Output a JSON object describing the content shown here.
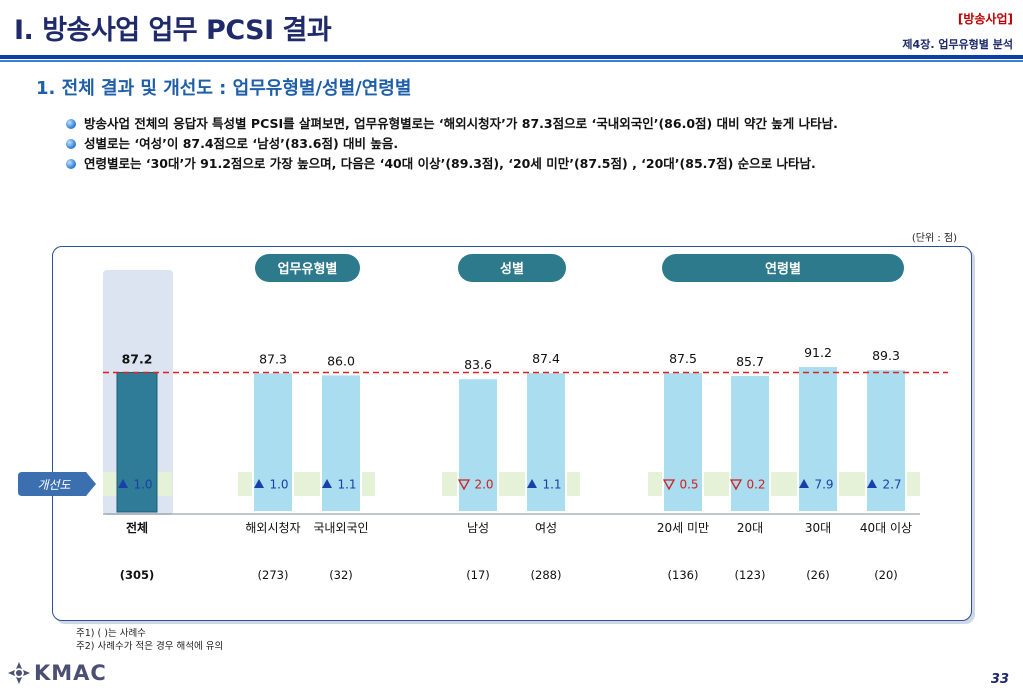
{
  "header": {
    "title": "I. 방송사업 업무 PCSI 결과",
    "tag": "[방송사업]",
    "chapter": "제4장. 업무유형별 분석"
  },
  "section": {
    "heading": "1. 전체 결과 및 개선도 : 업무유형별/성별/연령별"
  },
  "bullets": [
    "방송사업 전체의 응답자 특성별 PCSI를 살펴보면, 업무유형별로는 ‘해외시청자’가 87.3점으로 ‘국내외국인’(86.0점) 대비 약간 높게 나타남.",
    "성별로는 ‘여성’이 87.4점으로 ‘남성’(83.6점) 대비 높음.",
    "연령별로는 ‘30대’가 91.2점으로 가장 높으며, 다음은 ‘40대 이상’(89.3점), ‘20세 미만’(87.5점) , ‘20대’(85.7점) 순으로 나타남."
  ],
  "unit": "(단위 : 점)",
  "chart_data": {
    "type": "bar",
    "ylim": [
      0,
      100
    ],
    "groups": [
      "업무유형별",
      "성별",
      "연령별"
    ],
    "improvement_label": "개선도",
    "average_line": 87.2,
    "bars": [
      {
        "category": "전체",
        "group": "",
        "value": 87.2,
        "value_label": "87.2",
        "improvement": 1.0,
        "improvement_dir": "up",
        "improvement_label": "1.0",
        "n": "(305)",
        "highlight": true
      },
      {
        "category": "해외시청자",
        "group": "업무유형별",
        "value": 87.3,
        "value_label": "87.3",
        "improvement": 1.0,
        "improvement_dir": "up",
        "improvement_label": "1.0",
        "n": "(273)"
      },
      {
        "category": "국내외국인",
        "group": "업무유형별",
        "value": 86.0,
        "value_label": "86.0",
        "improvement": 1.1,
        "improvement_dir": "up",
        "improvement_label": "1.1",
        "n": "(32)"
      },
      {
        "category": "남성",
        "group": "성별",
        "value": 83.6,
        "value_label": "83.6",
        "improvement": -2.0,
        "improvement_dir": "down",
        "improvement_label": "2.0",
        "n": "(17)"
      },
      {
        "category": "여성",
        "group": "성별",
        "value": 87.4,
        "value_label": "87.4",
        "improvement": 1.1,
        "improvement_dir": "up",
        "improvement_label": "1.1",
        "n": "(288)"
      },
      {
        "category": "20세 미만",
        "group": "연령별",
        "value": 87.5,
        "value_label": "87.5",
        "improvement": -0.5,
        "improvement_dir": "down",
        "improvement_label": "0.5",
        "n": "(136)"
      },
      {
        "category": "20대",
        "group": "연령별",
        "value": 85.7,
        "value_label": "85.7",
        "improvement": -0.2,
        "improvement_dir": "down",
        "improvement_label": "0.2",
        "n": "(123)"
      },
      {
        "category": "30대",
        "group": "연령별",
        "value": 91.2,
        "value_label": "91.2",
        "improvement": 7.9,
        "improvement_dir": "up",
        "improvement_label": "7.9",
        "n": "(26)"
      },
      {
        "category": "40대 이상",
        "group": "연령별",
        "value": 89.3,
        "value_label": "89.3",
        "improvement": 2.7,
        "improvement_dir": "up",
        "improvement_label": "2.7",
        "n": "(20)"
      }
    ],
    "colors": {
      "total_bar": "#2e7c97",
      "bar": "#a9ddef",
      "bar_edge": "#ffffff",
      "group_pill": "#2d7a8c",
      "average_line": "#e02020",
      "improvement_bg": "#e6f2d8",
      "up_marker": "#1a3fa8",
      "down_marker": "#d02020",
      "total_column_bg": "#dbe4f0",
      "label_badge": "#3b6fb0"
    }
  },
  "notes": [
    "주1) ( )는 사례수",
    "주2) 사례수가 적은 경우 해석에 유의"
  ],
  "footer": {
    "logo_text": "KMAC",
    "page_number": "33"
  }
}
